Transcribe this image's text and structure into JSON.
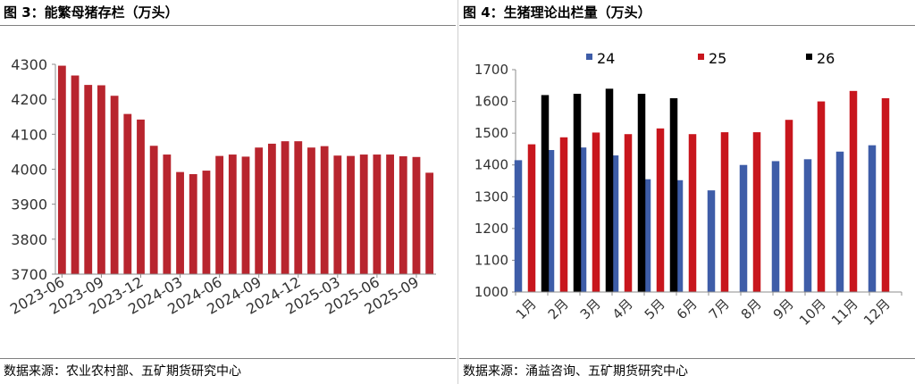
{
  "left": {
    "title": "图 3：能繁母猪存栏（万头）",
    "source": "数据来源：农业农村部、五矿期货研究中心",
    "chart_data": {
      "type": "bar",
      "color": "#b8252e",
      "ylim": [
        3700,
        4300
      ],
      "yticks": [
        3700,
        3800,
        3900,
        4000,
        4100,
        4200,
        4300
      ],
      "x": [
        "2023-06",
        "2023-07",
        "2023-08",
        "2023-09",
        "2023-10",
        "2023-11",
        "2023-12",
        "2024-01",
        "2024-02",
        "2024-03",
        "2024-04",
        "2024-05",
        "2024-06",
        "2024-07",
        "2024-08",
        "2024-09",
        "2024-10",
        "2024-11",
        "2024-12",
        "2025-01",
        "2025-02",
        "2025-03",
        "2025-04",
        "2025-05",
        "2025-06",
        "2025-07",
        "2025-08",
        "2025-09",
        "2025-10"
      ],
      "values": [
        4296,
        4268,
        4241,
        4240,
        4210,
        4158,
        4142,
        4067,
        4042,
        3992,
        3986,
        3996,
        4038,
        4042,
        4036,
        4062,
        4073,
        4080,
        4080,
        4062,
        4066,
        4039,
        4038,
        4042,
        4042,
        4042,
        4037,
        4035,
        3990
      ],
      "xtick_labels": [
        "2023-06",
        "2023-09",
        "2023-12",
        "2024-03",
        "2024-06",
        "2024-09",
        "2024-12",
        "2025-03",
        "2025-06",
        "2025-09"
      ],
      "xtick_index": [
        0,
        3,
        6,
        9,
        12,
        15,
        18,
        21,
        24,
        27
      ]
    }
  },
  "right": {
    "title": "图 4：生猪理论出栏量（万头）",
    "source": "数据来源：涌益咨询、五矿期货研究中心",
    "chart_data": {
      "type": "bar",
      "ylim": [
        1000,
        1700
      ],
      "yticks": [
        1000,
        1100,
        1200,
        1300,
        1400,
        1500,
        1600,
        1700
      ],
      "categories": [
        "1月",
        "2月",
        "3月",
        "4月",
        "5月",
        "6月",
        "7月",
        "8月",
        "9月",
        "10月",
        "11月",
        "12月"
      ],
      "legend_position": "top",
      "series": [
        {
          "name": "24",
          "color": "#3e5da8",
          "values": [
            1415,
            1447,
            1455,
            1430,
            1355,
            1352,
            1320,
            1400,
            1412,
            1418,
            1442,
            1462
          ]
        },
        {
          "name": "25",
          "color": "#c8161d",
          "values": [
            1465,
            1487,
            1502,
            1497,
            1515,
            1497,
            1503,
            1503,
            1542,
            1600,
            1633,
            1610
          ]
        },
        {
          "name": "26",
          "color": "#000000",
          "values": [
            1620,
            1624,
            1640,
            1624,
            1610,
            null,
            null,
            null,
            null,
            null,
            null,
            null
          ]
        }
      ]
    }
  }
}
